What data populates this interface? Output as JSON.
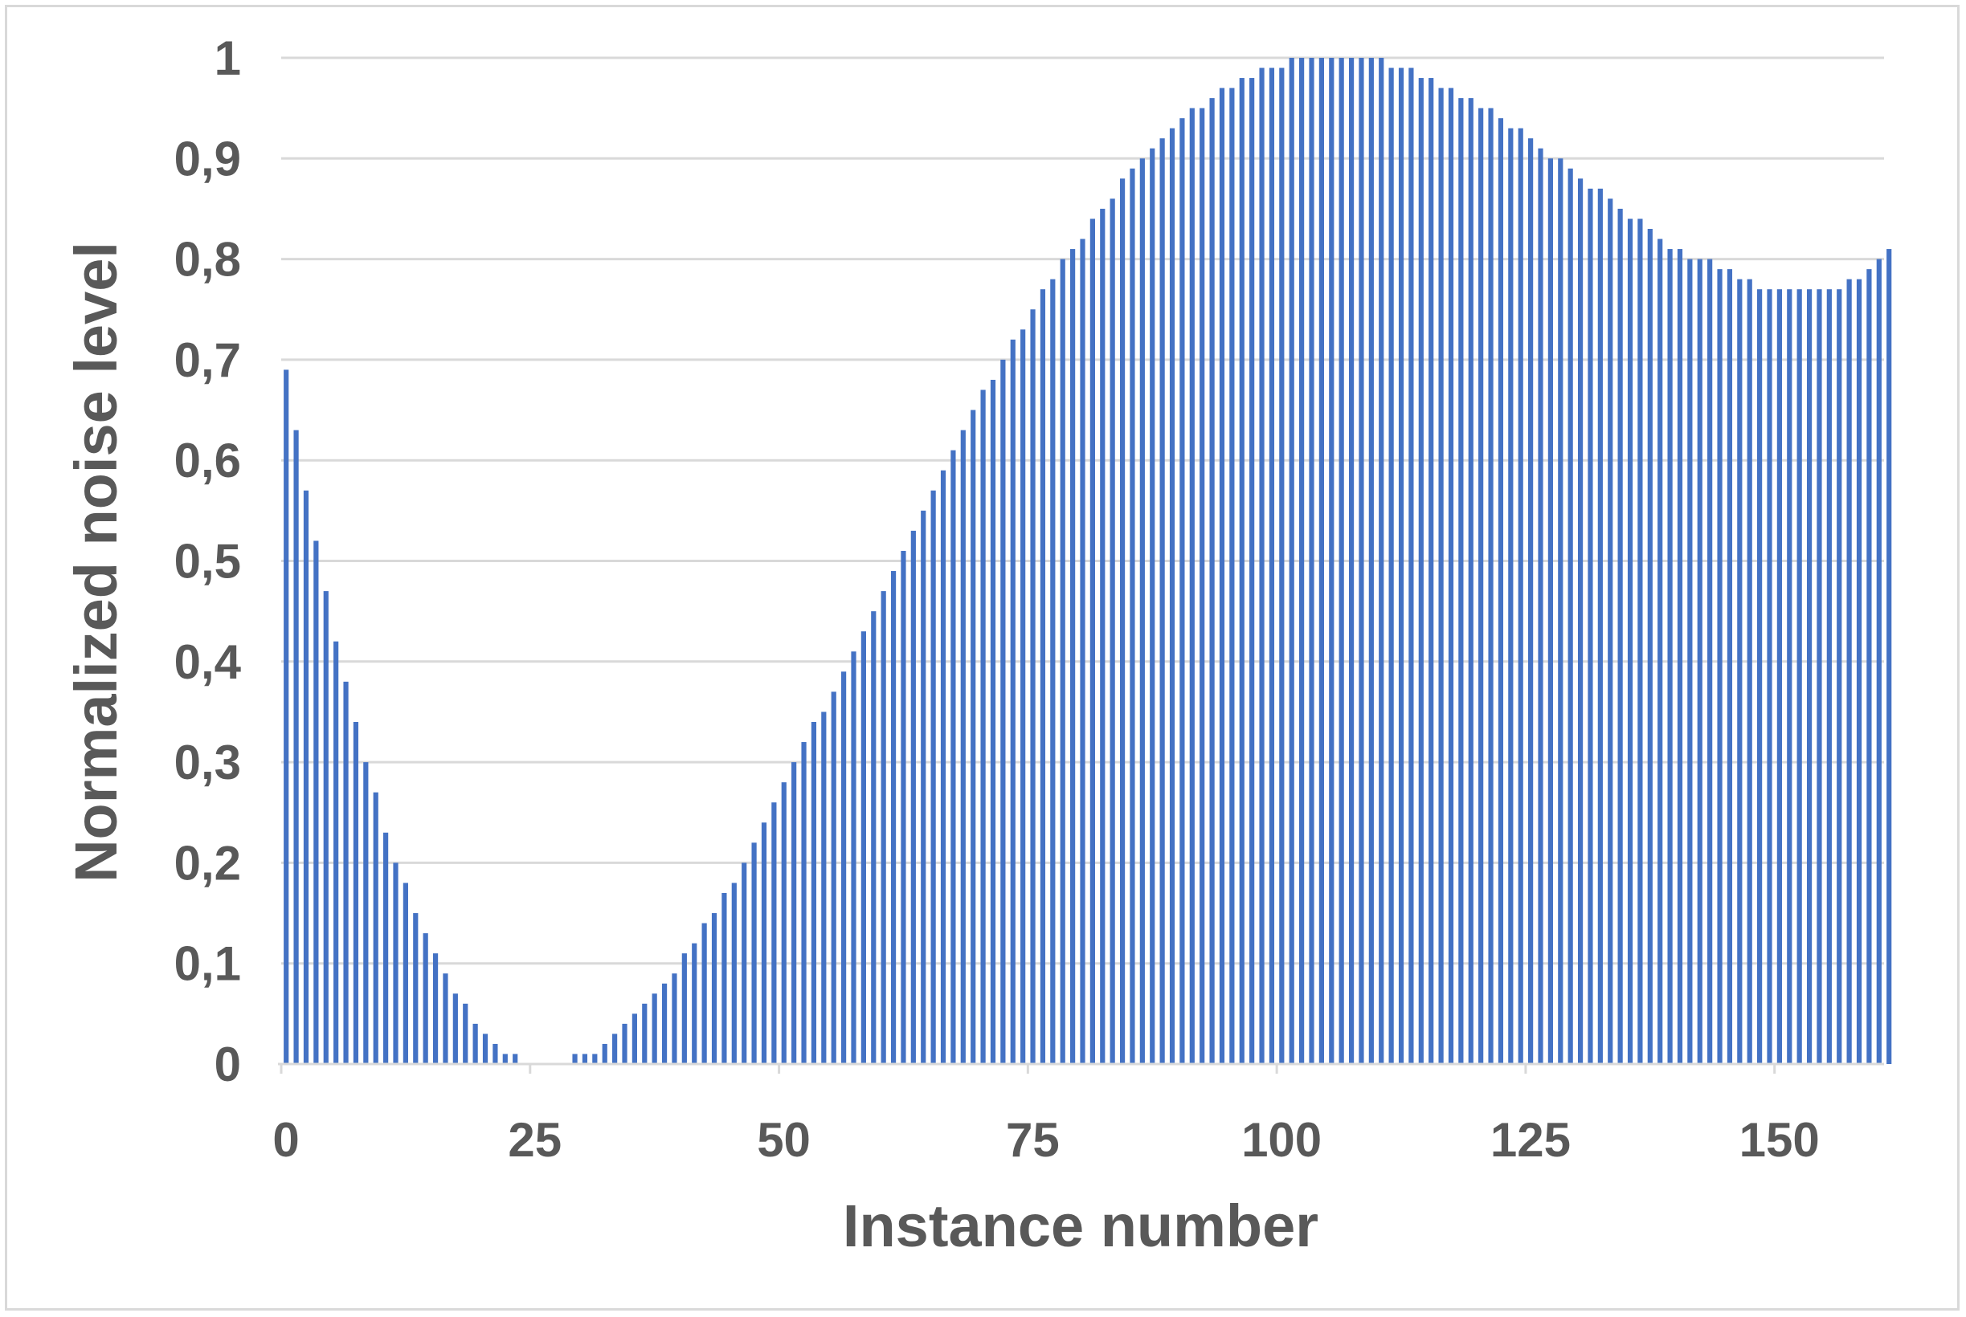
{
  "chart_data": {
    "type": "bar",
    "title": "",
    "xlabel": "Instance number",
    "ylabel": "Normalized noise level",
    "xlim": [
      0,
      161
    ],
    "ylim": [
      0,
      1
    ],
    "x_ticks": [
      "0",
      "25",
      "50",
      "75",
      "100",
      "125",
      "150"
    ],
    "y_ticks": [
      "0",
      "0,1",
      "0,2",
      "0,3",
      "0,4",
      "0,5",
      "0,6",
      "0,7",
      "0,8",
      "0,9",
      "1"
    ],
    "grid": "horizontal",
    "legend": "none",
    "bar_color": "#4472c4",
    "values": [
      0.69,
      0.63,
      0.57,
      0.52,
      0.47,
      0.42,
      0.38,
      0.34,
      0.3,
      0.27,
      0.23,
      0.2,
      0.18,
      0.15,
      0.13,
      0.11,
      0.09,
      0.07,
      0.06,
      0.04,
      0.03,
      0.02,
      0.01,
      0.01,
      0,
      0,
      0,
      0,
      0,
      0.01,
      0.01,
      0.01,
      0.02,
      0.03,
      0.04,
      0.05,
      0.06,
      0.07,
      0.08,
      0.09,
      0.11,
      0.12,
      0.14,
      0.15,
      0.17,
      0.18,
      0.2,
      0.22,
      0.24,
      0.26,
      0.28,
      0.3,
      0.32,
      0.34,
      0.35,
      0.37,
      0.39,
      0.41,
      0.43,
      0.45,
      0.47,
      0.49,
      0.51,
      0.53,
      0.55,
      0.57,
      0.59,
      0.61,
      0.63,
      0.65,
      0.67,
      0.68,
      0.7,
      0.72,
      0.73,
      0.75,
      0.77,
      0.78,
      0.8,
      0.81,
      0.82,
      0.84,
      0.85,
      0.86,
      0.88,
      0.89,
      0.9,
      0.91,
      0.92,
      0.93,
      0.94,
      0.95,
      0.95,
      0.96,
      0.97,
      0.97,
      0.98,
      0.98,
      0.99,
      0.99,
      0.99,
      1.0,
      1.0,
      1.0,
      1.0,
      1.0,
      1.0,
      1.0,
      1.0,
      1.0,
      1.0,
      0.99,
      0.99,
      0.99,
      0.98,
      0.98,
      0.97,
      0.97,
      0.96,
      0.96,
      0.95,
      0.95,
      0.94,
      0.93,
      0.93,
      0.92,
      0.91,
      0.9,
      0.9,
      0.89,
      0.88,
      0.87,
      0.87,
      0.86,
      0.85,
      0.84,
      0.84,
      0.83,
      0.82,
      0.81,
      0.81,
      0.8,
      0.8,
      0.8,
      0.79,
      0.79,
      0.78,
      0.78,
      0.77,
      0.77,
      0.77,
      0.77,
      0.77,
      0.77,
      0.77,
      0.77,
      0.77,
      0.78,
      0.78,
      0.79,
      0.8,
      0.81
    ]
  }
}
